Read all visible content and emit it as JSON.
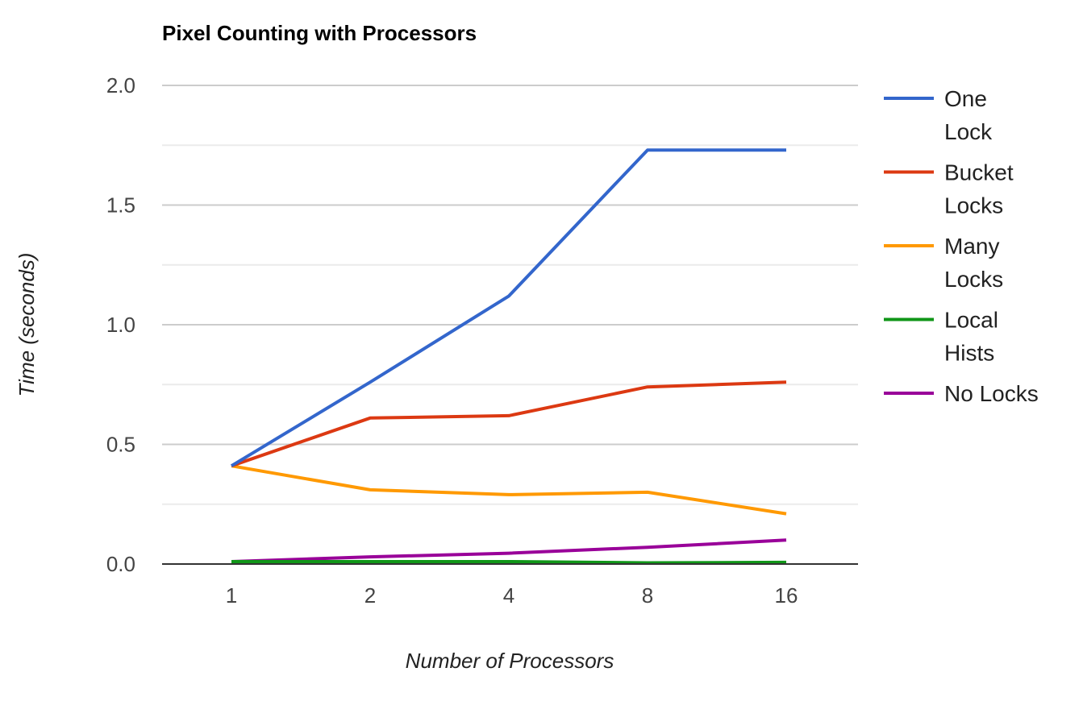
{
  "chart_data": {
    "type": "line",
    "title": "Pixel Counting with Processors",
    "xlabel": "Number of Processors",
    "ylabel": "Time (seconds)",
    "categories": [
      "1",
      "2",
      "4",
      "8",
      "16"
    ],
    "ylim": [
      0,
      2.0
    ],
    "yticks": [
      "0.0",
      "0.5",
      "1.0",
      "1.5",
      "2.0"
    ],
    "grid": true,
    "legend_position": "right",
    "series": [
      {
        "name": "One Lock",
        "values": [
          0.41,
          0.76,
          1.12,
          1.73,
          1.73
        ],
        "color": "#3366cc"
      },
      {
        "name": "Bucket Locks",
        "values": [
          0.41,
          0.61,
          0.62,
          0.74,
          0.76
        ],
        "color": "#dc3912"
      },
      {
        "name": "Many Locks",
        "values": [
          0.41,
          0.31,
          0.29,
          0.3,
          0.21
        ],
        "color": "#ff9900"
      },
      {
        "name": "Local Hists",
        "values": [
          0.01,
          0.01,
          0.01,
          0.005,
          0.007
        ],
        "color": "#109618"
      },
      {
        "name": "No Locks",
        "values": [
          0.01,
          0.03,
          0.045,
          0.07,
          0.1
        ],
        "color": "#990099"
      }
    ]
  }
}
